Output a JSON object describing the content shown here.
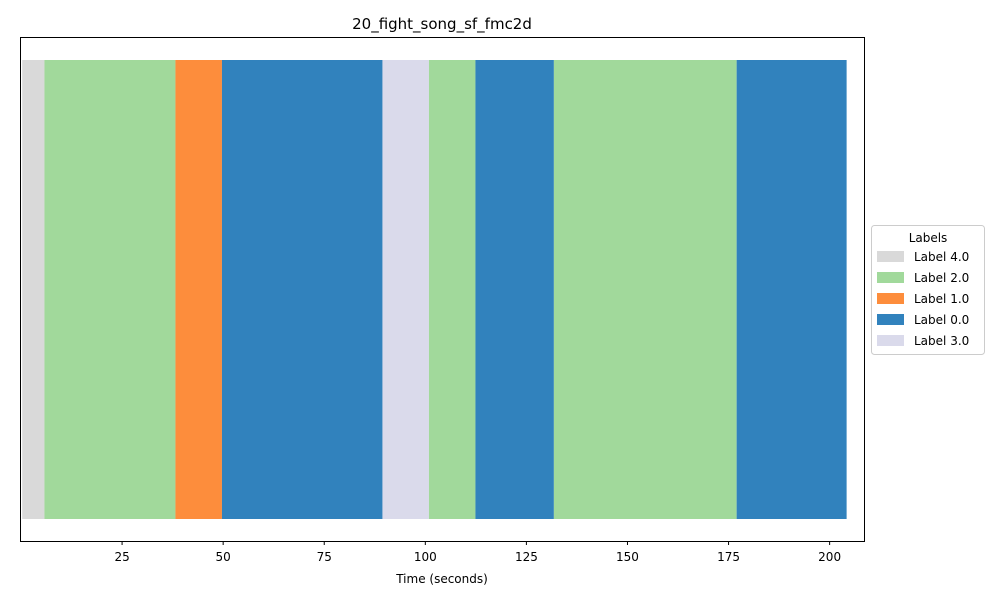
{
  "chart_data": {
    "type": "bar",
    "orientation": "horizontal-timeline",
    "title": "20_fight_song_sf_fmc2d",
    "xlabel": "Time (seconds)",
    "ylabel": "",
    "xlim": [
      0,
      208.5
    ],
    "xticks": [
      25,
      50,
      75,
      100,
      125,
      150,
      175,
      200
    ],
    "grid": false,
    "legend": {
      "title": "Labels",
      "placement": "center-right-outside",
      "entries": [
        {
          "label": "Label 4.0",
          "color": "#d9d9d9"
        },
        {
          "label": "Label 2.0",
          "color": "#a1d99b"
        },
        {
          "label": "Label 1.0",
          "color": "#fd8d3c"
        },
        {
          "label": "Label 0.0",
          "color": "#3182bd"
        },
        {
          "label": "Label 3.0",
          "color": "#dadaeb"
        }
      ]
    },
    "segments": [
      {
        "label": "Label 4.0",
        "start": 0.3,
        "end": 5.8
      },
      {
        "label": "Label 2.0",
        "start": 5.8,
        "end": 38.2
      },
      {
        "label": "Label 1.0",
        "start": 38.2,
        "end": 49.7
      },
      {
        "label": "Label 0.0",
        "start": 49.7,
        "end": 89.4
      },
      {
        "label": "Label 3.0",
        "start": 89.4,
        "end": 100.9
      },
      {
        "label": "Label 2.0",
        "start": 100.9,
        "end": 112.4
      },
      {
        "label": "Label 0.0",
        "start": 112.4,
        "end": 131.8
      },
      {
        "label": "Label 2.0",
        "start": 131.8,
        "end": 177.0
      },
      {
        "label": "Label 0.0",
        "start": 177.0,
        "end": 204.2
      }
    ]
  }
}
